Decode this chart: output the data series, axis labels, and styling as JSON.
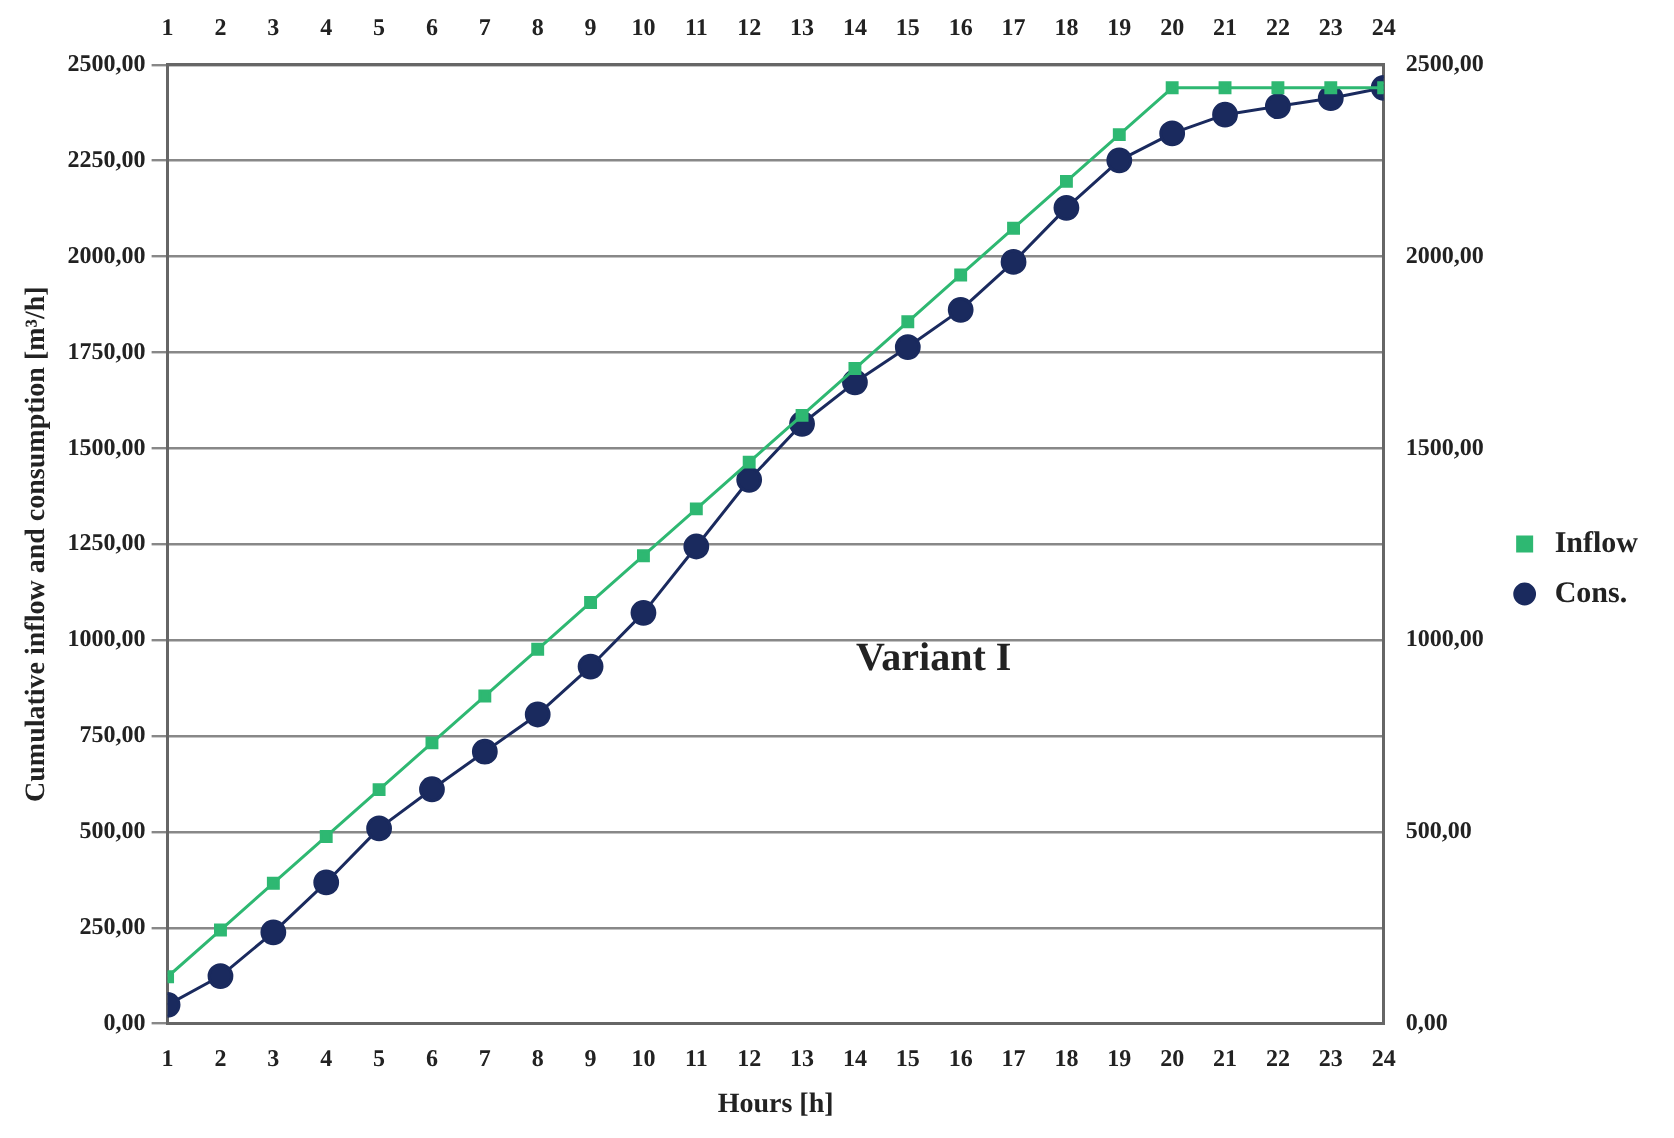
{
  "chart_data": {
    "type": "line",
    "xlabel": "Hours [h]",
    "ylabel": "Cumulative inflow and consumption [m³/h]",
    "x": [
      1,
      2,
      3,
      4,
      5,
      6,
      7,
      8,
      9,
      10,
      11,
      12,
      13,
      14,
      15,
      16,
      17,
      18,
      19,
      20,
      21,
      22,
      23,
      24
    ],
    "xlim": [
      1,
      24
    ],
    "xticks": [
      1,
      2,
      3,
      4,
      5,
      6,
      7,
      8,
      9,
      10,
      11,
      12,
      13,
      14,
      15,
      16,
      17,
      18,
      19,
      20,
      21,
      22,
      23,
      24
    ],
    "x2lim": [
      1,
      24
    ],
    "x2ticks": [
      1,
      2,
      3,
      4,
      5,
      6,
      7,
      8,
      9,
      10,
      11,
      12,
      13,
      14,
      15,
      16,
      17,
      18,
      19,
      20,
      21,
      22,
      23,
      24
    ],
    "ylim": [
      0,
      2500
    ],
    "yticks": [
      {
        "value": 0,
        "label": "0,00"
      },
      {
        "value": 250,
        "label": "250,00"
      },
      {
        "value": 500,
        "label": "500,00"
      },
      {
        "value": 750,
        "label": "750,00"
      },
      {
        "value": 1000,
        "label": "1000,00"
      },
      {
        "value": 1250,
        "label": "1250,00"
      },
      {
        "value": 1500,
        "label": "1500,00"
      },
      {
        "value": 1750,
        "label": "1750,00"
      },
      {
        "value": 2000,
        "label": "2000,00"
      },
      {
        "value": 2250,
        "label": "2250,00"
      },
      {
        "value": 2500,
        "label": "2500,00"
      }
    ],
    "y2lim": [
      0,
      2500
    ],
    "y2ticks": [
      {
        "value": 0,
        "label": "0,00"
      },
      {
        "value": 500,
        "label": "500,00"
      },
      {
        "value": 1000,
        "label": "1000,00"
      },
      {
        "value": 1500,
        "label": "1500,00"
      },
      {
        "value": 2000,
        "label": "2000,00"
      },
      {
        "value": 2500,
        "label": "2500,00"
      }
    ],
    "grid": "y",
    "legend": "right",
    "annotations": [
      "Variant I"
    ],
    "series": [
      {
        "name": "Inflow",
        "color": "#2eb872",
        "marker": "square",
        "values": [
          122,
          244,
          366,
          488,
          610,
          732,
          854,
          976,
          1098,
          1220,
          1342,
          1464,
          1586,
          1708,
          1830,
          1952,
          2074,
          2196,
          2318,
          2440,
          2440,
          2440,
          2440,
          2440
        ]
      },
      {
        "name": "Cons.",
        "color": "#1a2a5e",
        "marker": "circle",
        "values": [
          49,
          124,
          238,
          368,
          509,
          611,
          709,
          806,
          931,
          1071,
          1244,
          1418,
          1564,
          1672,
          1764,
          1861,
          1986,
          2127,
          2251,
          2321,
          2370,
          2392,
          2413,
          2440
        ]
      }
    ]
  }
}
